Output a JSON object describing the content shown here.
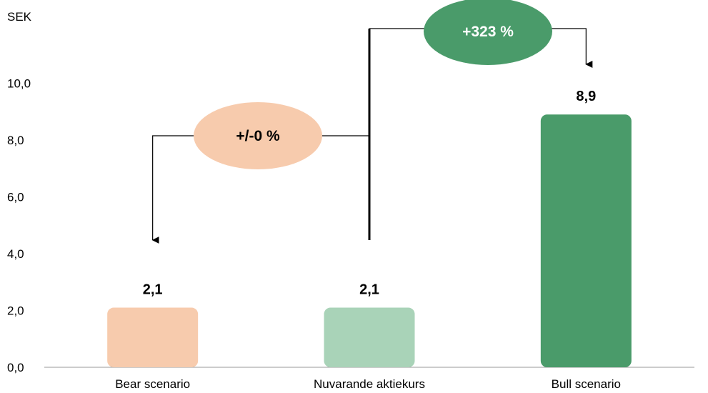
{
  "chart_data": {
    "type": "bar",
    "unit_label": "SEK",
    "categories": [
      "Bear scenario",
      "Nuvarande aktiekurs",
      "Bull scenario"
    ],
    "values": [
      2.1,
      2.1,
      8.9
    ],
    "value_labels": [
      "2,1",
      "2,1",
      "8,9"
    ],
    "bar_colors": [
      "#F7CBAD",
      "#A9D3B8",
      "#4A9B6A"
    ],
    "ylim": [
      0,
      12
    ],
    "yticks": [
      {
        "value": 0,
        "label": "0,0"
      },
      {
        "value": 2,
        "label": "2,0"
      },
      {
        "value": 4,
        "label": "4,0"
      },
      {
        "value": 6,
        "label": "6,0"
      },
      {
        "value": 8,
        "label": "8,0"
      },
      {
        "value": 10,
        "label": "10,0"
      }
    ],
    "grid": false,
    "annotations": [
      {
        "text": "+/-0 %",
        "from": "Nuvarande aktiekurs",
        "to": "Bear scenario",
        "fill": "#F7CBAD",
        "text_color": "#000000"
      },
      {
        "text": "+323 %",
        "from": "Nuvarande aktiekurs",
        "to": "Bull scenario",
        "fill": "#4A9B6A",
        "text_color": "#FFFFFF"
      }
    ]
  }
}
